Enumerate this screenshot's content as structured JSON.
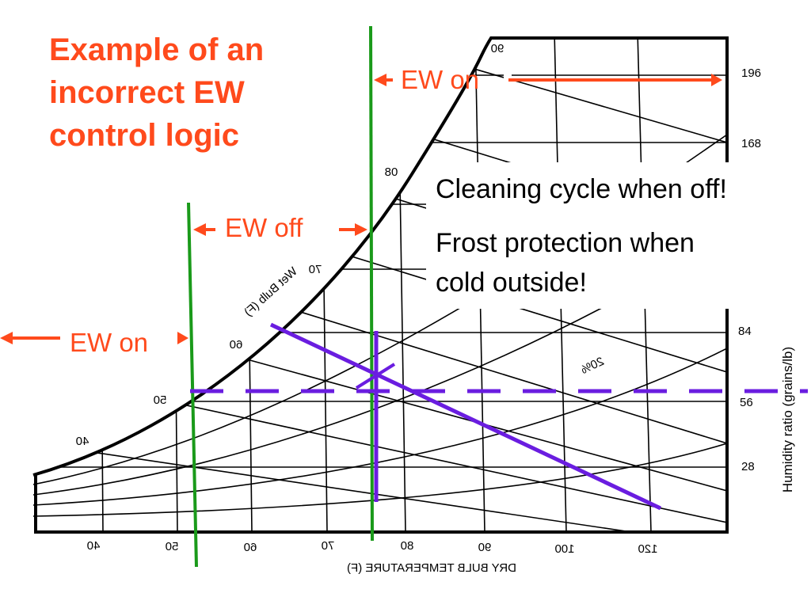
{
  "slide": {
    "title": [
      "Example of an",
      "incorrect EW",
      "control logic"
    ],
    "ew_on_top": "EW on",
    "ew_off": "EW off",
    "ew_on_left": "EW on",
    "note_1": "Cleaning cycle when off!",
    "note_2": [
      "Frost protection when",
      "cold outside!"
    ]
  },
  "psychrometric_chart": {
    "humidity_ticks": [
      "196",
      "168",
      "84",
      "56",
      "28"
    ],
    "humidity_axis_label": "Humidity ratio (grains/lb)",
    "dry_bulb_ticks": [
      "40",
      "50",
      "60",
      "70",
      "80",
      "90",
      "100",
      "120"
    ],
    "dry_bulb_axis_label": "DRY BULB TEMPERATURE (F)",
    "wet_bulb_ticks": [
      "40",
      "50",
      "60",
      "70",
      "80",
      "90"
    ],
    "wet_bulb_axis_label": "Wet Bulb (F)",
    "rh_label": "20%"
  }
}
